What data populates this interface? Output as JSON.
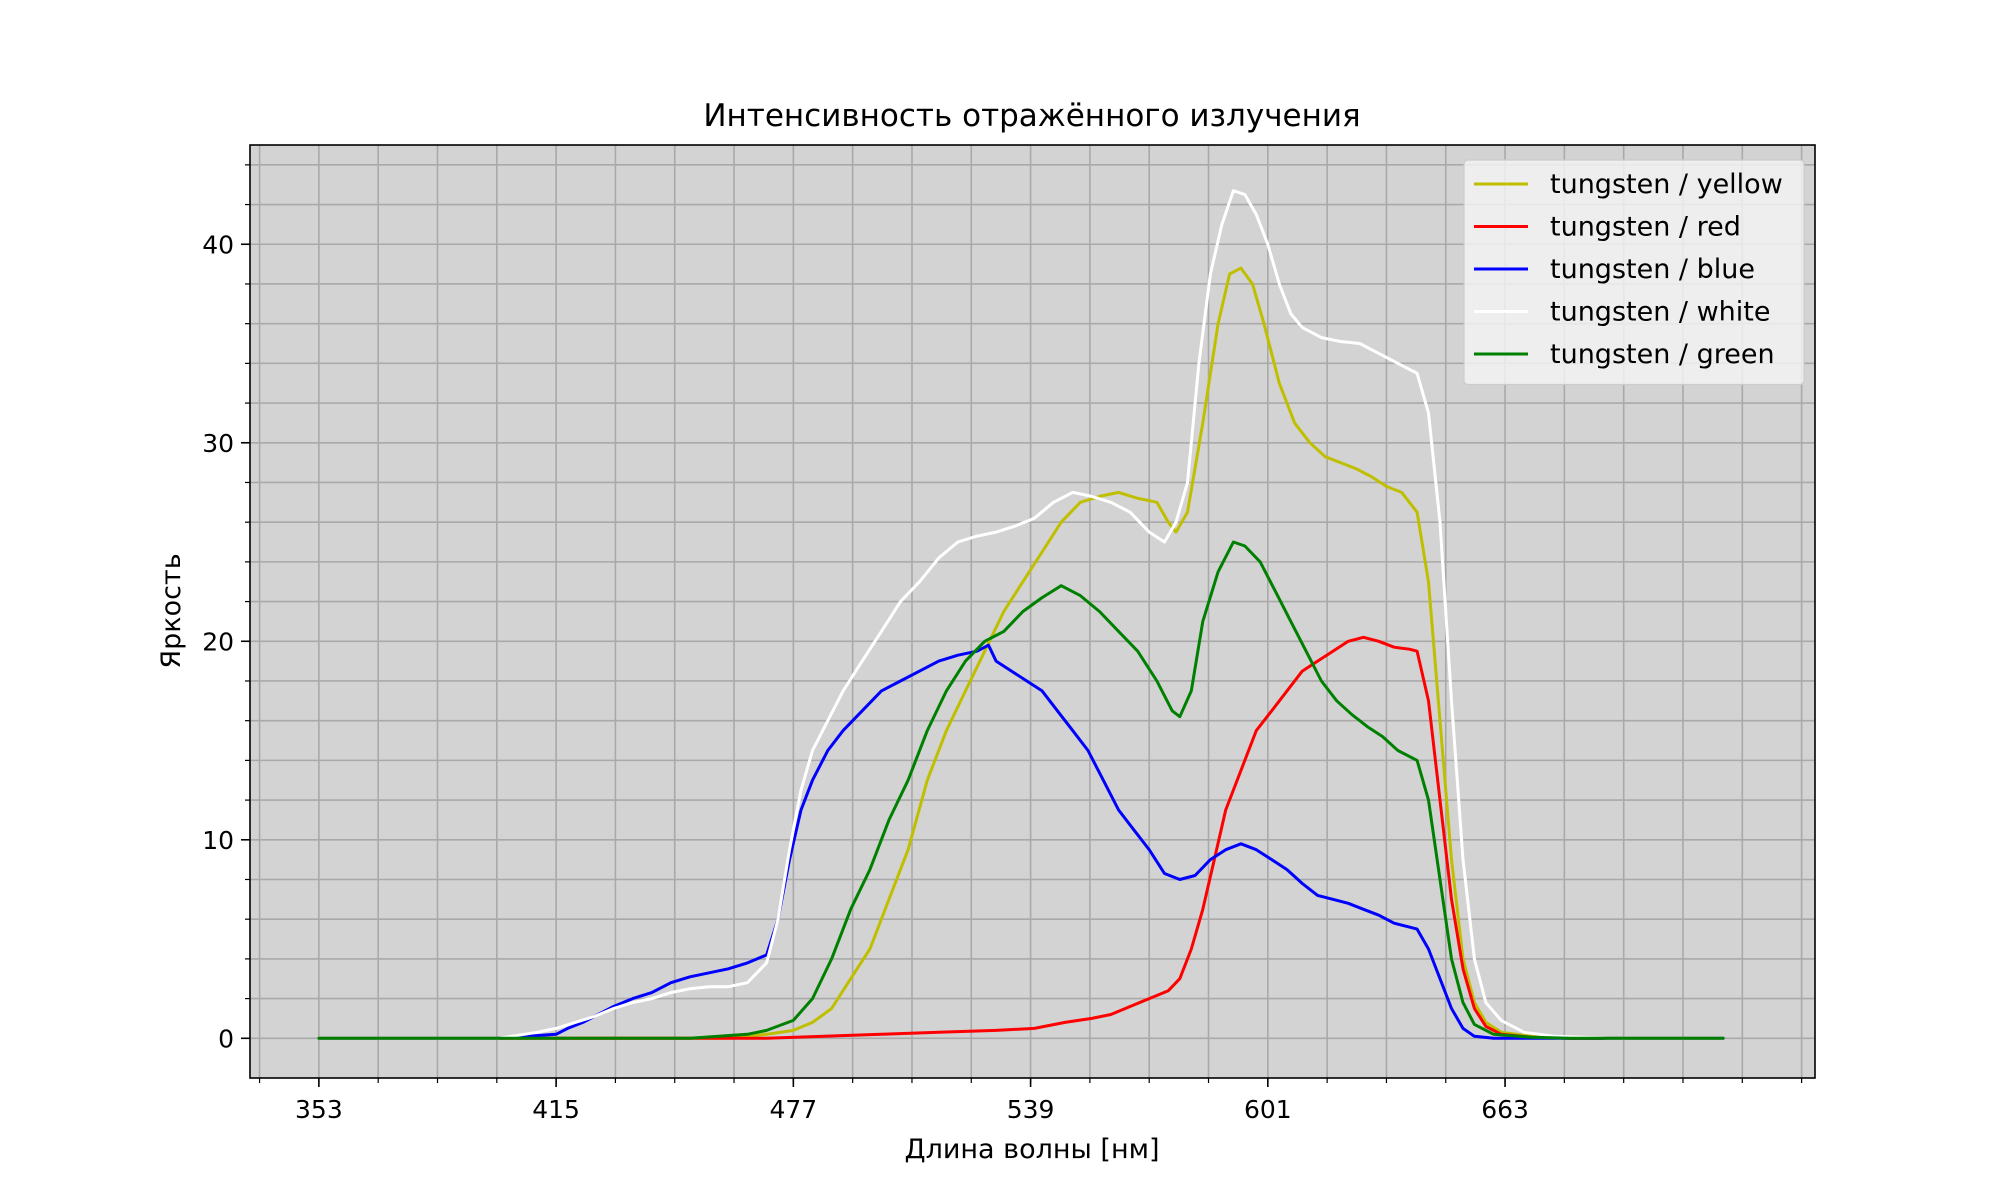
{
  "chart_data": {
    "type": "line",
    "title": "Интенсивность отражённого излучения",
    "xlabel": "Длина волны [нм]",
    "ylabel": "Яркость",
    "xlim": [
      335,
      744
    ],
    "ylim": [
      -2,
      45
    ],
    "xticks": [
      353,
      415,
      477,
      539,
      601,
      663
    ],
    "xtick_labels": [
      "353",
      "415",
      "477",
      "539",
      "601",
      "663"
    ],
    "yticks": [
      0,
      10,
      20,
      30,
      40
    ],
    "ytick_labels": [
      "0",
      "10",
      "20",
      "30",
      "40"
    ],
    "grid": true,
    "plot_background": "#d3d3d3",
    "grid_color": "#a9a9a9",
    "legend_location": "upper right",
    "series": [
      {
        "name": "tungsten / yellow",
        "color": "#bfbf00",
        "points": [
          [
            353,
            0
          ],
          [
            420,
            0
          ],
          [
            460,
            0
          ],
          [
            470,
            0.2
          ],
          [
            477,
            0.4
          ],
          [
            482,
            0.8
          ],
          [
            487,
            1.5
          ],
          [
            492,
            3
          ],
          [
            497,
            4.5
          ],
          [
            502,
            7
          ],
          [
            507,
            9.5
          ],
          [
            512,
            13
          ],
          [
            517,
            15.5
          ],
          [
            522,
            17.5
          ],
          [
            527,
            19.5
          ],
          [
            532,
            21.5
          ],
          [
            537,
            23
          ],
          [
            542,
            24.5
          ],
          [
            547,
            26
          ],
          [
            552,
            27
          ],
          [
            557,
            27.3
          ],
          [
            562,
            27.5
          ],
          [
            567,
            27.2
          ],
          [
            572,
            27
          ],
          [
            575,
            26
          ],
          [
            577,
            25.5
          ],
          [
            580,
            26.5
          ],
          [
            584,
            31
          ],
          [
            588,
            36
          ],
          [
            591,
            38.5
          ],
          [
            594,
            38.8
          ],
          [
            597,
            38
          ],
          [
            600,
            36
          ],
          [
            604,
            33
          ],
          [
            608,
            31
          ],
          [
            612,
            30
          ],
          [
            616,
            29.3
          ],
          [
            620,
            29
          ],
          [
            624,
            28.7
          ],
          [
            628,
            28.3
          ],
          [
            632,
            27.8
          ],
          [
            636,
            27.5
          ],
          [
            640,
            26.5
          ],
          [
            643,
            23
          ],
          [
            646,
            16
          ],
          [
            649,
            9
          ],
          [
            652,
            4
          ],
          [
            655,
            1.8
          ],
          [
            658,
            0.8
          ],
          [
            662,
            0.3
          ],
          [
            670,
            0.1
          ],
          [
            680,
            0
          ],
          [
            720,
            0
          ]
        ]
      },
      {
        "name": "tungsten / red",
        "color": "#ff0000",
        "points": [
          [
            353,
            0
          ],
          [
            440,
            0
          ],
          [
            470,
            0
          ],
          [
            485,
            0.1
          ],
          [
            500,
            0.2
          ],
          [
            515,
            0.3
          ],
          [
            530,
            0.4
          ],
          [
            540,
            0.5
          ],
          [
            548,
            0.8
          ],
          [
            555,
            1
          ],
          [
            560,
            1.2
          ],
          [
            565,
            1.6
          ],
          [
            570,
            2
          ],
          [
            575,
            2.4
          ],
          [
            578,
            3
          ],
          [
            581,
            4.5
          ],
          [
            584,
            6.5
          ],
          [
            587,
            9
          ],
          [
            590,
            11.5
          ],
          [
            594,
            13.5
          ],
          [
            598,
            15.5
          ],
          [
            602,
            16.5
          ],
          [
            606,
            17.5
          ],
          [
            610,
            18.5
          ],
          [
            614,
            19
          ],
          [
            618,
            19.5
          ],
          [
            622,
            20
          ],
          [
            626,
            20.2
          ],
          [
            630,
            20
          ],
          [
            634,
            19.7
          ],
          [
            638,
            19.6
          ],
          [
            640,
            19.5
          ],
          [
            643,
            17
          ],
          [
            646,
            12
          ],
          [
            649,
            7
          ],
          [
            652,
            3.5
          ],
          [
            655,
            1.5
          ],
          [
            658,
            0.6
          ],
          [
            662,
            0.2
          ],
          [
            670,
            0.05
          ],
          [
            680,
            0
          ],
          [
            720,
            0
          ]
        ]
      },
      {
        "name": "tungsten / blue",
        "color": "#0000ff",
        "points": [
          [
            353,
            0
          ],
          [
            400,
            0
          ],
          [
            415,
            0.2
          ],
          [
            418,
            0.5
          ],
          [
            422,
            0.8
          ],
          [
            426,
            1.2
          ],
          [
            430,
            1.6
          ],
          [
            435,
            2
          ],
          [
            440,
            2.3
          ],
          [
            445,
            2.8
          ],
          [
            450,
            3.1
          ],
          [
            455,
            3.3
          ],
          [
            460,
            3.5
          ],
          [
            465,
            3.8
          ],
          [
            470,
            4.2
          ],
          [
            473,
            6
          ],
          [
            476,
            9
          ],
          [
            479,
            11.5
          ],
          [
            482,
            13
          ],
          [
            486,
            14.5
          ],
          [
            490,
            15.5
          ],
          [
            495,
            16.5
          ],
          [
            500,
            17.5
          ],
          [
            505,
            18
          ],
          [
            510,
            18.5
          ],
          [
            515,
            19
          ],
          [
            520,
            19.3
          ],
          [
            525,
            19.5
          ],
          [
            528,
            19.8
          ],
          [
            530,
            19
          ],
          [
            534,
            18.5
          ],
          [
            538,
            18
          ],
          [
            542,
            17.5
          ],
          [
            546,
            16.5
          ],
          [
            550,
            15.5
          ],
          [
            554,
            14.5
          ],
          [
            558,
            13
          ],
          [
            562,
            11.5
          ],
          [
            566,
            10.5
          ],
          [
            570,
            9.5
          ],
          [
            574,
            8.3
          ],
          [
            578,
            8
          ],
          [
            582,
            8.2
          ],
          [
            586,
            9
          ],
          [
            590,
            9.5
          ],
          [
            594,
            9.8
          ],
          [
            598,
            9.5
          ],
          [
            602,
            9
          ],
          [
            606,
            8.5
          ],
          [
            610,
            7.8
          ],
          [
            614,
            7.2
          ],
          [
            618,
            7
          ],
          [
            622,
            6.8
          ],
          [
            626,
            6.5
          ],
          [
            630,
            6.2
          ],
          [
            634,
            5.8
          ],
          [
            638,
            5.6
          ],
          [
            640,
            5.5
          ],
          [
            643,
            4.5
          ],
          [
            646,
            3
          ],
          [
            649,
            1.5
          ],
          [
            652,
            0.5
          ],
          [
            655,
            0.1
          ],
          [
            660,
            0
          ],
          [
            720,
            0
          ]
        ]
      },
      {
        "name": "tungsten / white",
        "color": "#ffffff",
        "points": [
          [
            353,
            0
          ],
          [
            400,
            0
          ],
          [
            410,
            0.3
          ],
          [
            415,
            0.5
          ],
          [
            420,
            0.8
          ],
          [
            425,
            1.1
          ],
          [
            430,
            1.5
          ],
          [
            435,
            1.8
          ],
          [
            440,
            2
          ],
          [
            445,
            2.3
          ],
          [
            450,
            2.5
          ],
          [
            455,
            2.6
          ],
          [
            460,
            2.6
          ],
          [
            465,
            2.8
          ],
          [
            470,
            3.8
          ],
          [
            473,
            6
          ],
          [
            476,
            9.5
          ],
          [
            479,
            12.5
          ],
          [
            482,
            14.5
          ],
          [
            486,
            16
          ],
          [
            490,
            17.5
          ],
          [
            495,
            19
          ],
          [
            500,
            20.5
          ],
          [
            505,
            22
          ],
          [
            510,
            23
          ],
          [
            515,
            24.2
          ],
          [
            520,
            25
          ],
          [
            525,
            25.3
          ],
          [
            530,
            25.5
          ],
          [
            535,
            25.8
          ],
          [
            540,
            26.2
          ],
          [
            545,
            27
          ],
          [
            550,
            27.5
          ],
          [
            555,
            27.3
          ],
          [
            560,
            27
          ],
          [
            565,
            26.5
          ],
          [
            570,
            25.5
          ],
          [
            574,
            25
          ],
          [
            577,
            26
          ],
          [
            580,
            28
          ],
          [
            583,
            34
          ],
          [
            586,
            38.5
          ],
          [
            589,
            41
          ],
          [
            592,
            42.7
          ],
          [
            595,
            42.5
          ],
          [
            598,
            41.5
          ],
          [
            601,
            40
          ],
          [
            604,
            38
          ],
          [
            607,
            36.5
          ],
          [
            610,
            35.8
          ],
          [
            615,
            35.3
          ],
          [
            620,
            35.1
          ],
          [
            625,
            35
          ],
          [
            630,
            34.5
          ],
          [
            635,
            34
          ],
          [
            640,
            33.5
          ],
          [
            643,
            31.5
          ],
          [
            646,
            26
          ],
          [
            649,
            17
          ],
          [
            652,
            9
          ],
          [
            655,
            4
          ],
          [
            658,
            1.8
          ],
          [
            662,
            0.9
          ],
          [
            668,
            0.3
          ],
          [
            676,
            0.1
          ],
          [
            690,
            0
          ],
          [
            720,
            0
          ]
        ]
      },
      {
        "name": "tungsten / green",
        "color": "#008000",
        "points": [
          [
            353,
            0
          ],
          [
            420,
            0
          ],
          [
            450,
            0
          ],
          [
            465,
            0.2
          ],
          [
            470,
            0.4
          ],
          [
            477,
            0.9
          ],
          [
            482,
            2
          ],
          [
            487,
            4
          ],
          [
            492,
            6.5
          ],
          [
            497,
            8.5
          ],
          [
            502,
            11
          ],
          [
            507,
            13
          ],
          [
            512,
            15.5
          ],
          [
            517,
            17.5
          ],
          [
            522,
            19
          ],
          [
            527,
            20
          ],
          [
            532,
            20.5
          ],
          [
            537,
            21.5
          ],
          [
            542,
            22.2
          ],
          [
            547,
            22.8
          ],
          [
            552,
            22.3
          ],
          [
            557,
            21.5
          ],
          [
            562,
            20.5
          ],
          [
            567,
            19.5
          ],
          [
            572,
            18
          ],
          [
            576,
            16.5
          ],
          [
            578,
            16.2
          ],
          [
            581,
            17.5
          ],
          [
            584,
            21
          ],
          [
            588,
            23.5
          ],
          [
            592,
            25
          ],
          [
            595,
            24.8
          ],
          [
            599,
            24
          ],
          [
            603,
            22.5
          ],
          [
            607,
            21
          ],
          [
            611,
            19.5
          ],
          [
            615,
            18
          ],
          [
            619,
            17
          ],
          [
            623,
            16.3
          ],
          [
            627,
            15.7
          ],
          [
            631,
            15.2
          ],
          [
            635,
            14.5
          ],
          [
            640,
            14
          ],
          [
            643,
            12
          ],
          [
            646,
            8
          ],
          [
            649,
            4
          ],
          [
            652,
            1.8
          ],
          [
            655,
            0.7
          ],
          [
            660,
            0.2
          ],
          [
            670,
            0.05
          ],
          [
            680,
            0
          ],
          [
            720,
            0
          ]
        ]
      }
    ]
  }
}
